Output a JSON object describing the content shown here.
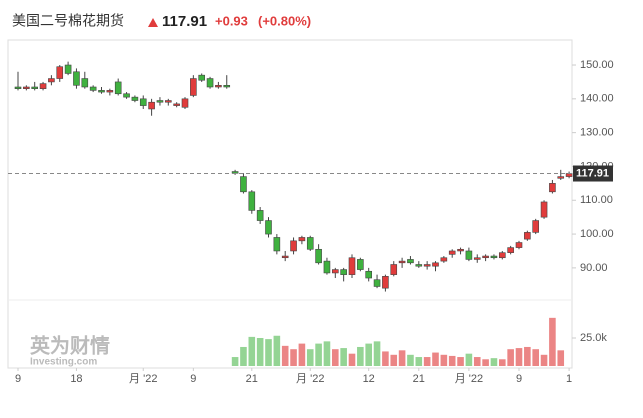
{
  "chart_data": {
    "type": "candlestick",
    "title": "美国二号棉花期货",
    "price_change": "+0.93",
    "price_change_pct": "(+0.80%)",
    "watermark_cn": "英为财情",
    "watermark_en": "Investing.com",
    "categories": [
      "9",
      null,
      null,
      null,
      null,
      null,
      null,
      "18",
      null,
      null,
      null,
      null,
      null,
      null,
      null,
      "月 '22",
      null,
      null,
      null,
      null,
      null,
      "9",
      null,
      null,
      null,
      null,
      null,
      null,
      "21",
      null,
      null,
      null,
      null,
      null,
      null,
      "月 '22",
      null,
      null,
      null,
      null,
      null,
      null,
      "12",
      null,
      null,
      null,
      null,
      null,
      "21",
      null,
      null,
      null,
      null,
      null,
      "月 '22",
      null,
      null,
      null,
      null,
      null,
      "9",
      null,
      null,
      null,
      null,
      null,
      "1"
    ],
    "open": [
      143.5,
      143,
      143.5,
      143,
      145,
      146,
      150,
      148,
      146,
      143.5,
      142.5,
      142,
      145,
      141.5,
      140.5,
      140,
      137,
      139.5,
      139,
      138,
      137.5,
      141,
      147,
      146,
      143.5,
      144,
      118.5,
      117,
      112.5,
      107,
      104,
      99,
      93,
      95,
      98,
      99,
      95.5,
      92,
      88.5,
      89.5,
      88,
      92.5,
      89,
      86.5,
      84,
      88,
      91.5,
      92.5,
      91,
      90.5,
      90.5,
      92,
      94,
      95,
      95,
      92.5,
      93,
      93.5,
      93,
      94.5,
      96,
      98.5,
      100.5,
      105,
      112.5,
      116.5,
      117
    ],
    "high": [
      148,
      144,
      145,
      145,
      147,
      150,
      151,
      149,
      148,
      144,
      143.5,
      143,
      146,
      142,
      141,
      141,
      140,
      140.5,
      140,
      139,
      140.5,
      147,
      147.5,
      146.5,
      145,
      147,
      119,
      118,
      113,
      108,
      105,
      100,
      95,
      99,
      99.5,
      99.5,
      97,
      93,
      90,
      90,
      94,
      93,
      90,
      88,
      88,
      92,
      93,
      93.5,
      92,
      92,
      92,
      93.5,
      95.5,
      96,
      96,
      94,
      94,
      94,
      95,
      96.5,
      98,
      101,
      104.5,
      110,
      116,
      119,
      118.5
    ],
    "low": [
      142.5,
      142.5,
      142.5,
      142.5,
      144,
      145,
      147,
      143,
      143,
      142,
      141.5,
      141,
      141,
      140,
      139,
      137,
      135,
      138,
      138,
      137.5,
      137,
      140.5,
      145,
      143,
      143,
      143,
      117.5,
      112,
      106,
      103,
      99,
      94,
      92,
      94,
      97,
      95,
      91,
      88,
      87,
      86,
      87,
      89,
      86,
      84,
      83,
      87.5,
      90,
      91,
      90,
      89.5,
      89,
      91.5,
      93,
      94,
      92,
      91.5,
      92,
      92.5,
      92.5,
      94,
      95.5,
      98,
      100,
      104.5,
      112,
      116,
      116.5
    ],
    "close": [
      143,
      143.5,
      143,
      144.5,
      146,
      149.5,
      147.5,
      144,
      143.5,
      142.5,
      142,
      142.5,
      141.5,
      140.5,
      139.5,
      138,
      139,
      139,
      139.5,
      138.5,
      140,
      146,
      145.5,
      143.5,
      144,
      143.5,
      118,
      112.5,
      107,
      104,
      100,
      95,
      93.5,
      98,
      99,
      95.5,
      91.5,
      88.5,
      89.5,
      88,
      93,
      89.5,
      87,
      84.5,
      87.5,
      91,
      92,
      91.5,
      90.5,
      91,
      91.5,
      93,
      95,
      95.5,
      92.5,
      93,
      93.5,
      93,
      94.5,
      96,
      97.5,
      100.5,
      104,
      109.5,
      115,
      117,
      117.91
    ],
    "volume": [
      null,
      null,
      null,
      null,
      null,
      null,
      null,
      null,
      null,
      null,
      null,
      null,
      null,
      null,
      null,
      null,
      null,
      null,
      null,
      null,
      null,
      null,
      null,
      null,
      null,
      null,
      8000,
      17000,
      26000,
      25000,
      24000,
      27000,
      18000,
      15000,
      20000,
      15000,
      20000,
      22000,
      15000,
      16000,
      11000,
      17000,
      20000,
      22000,
      13000,
      10000,
      14000,
      10000,
      8000,
      8000,
      12000,
      10000,
      9000,
      8000,
      11000,
      8000,
      6000,
      7000,
      6000,
      15000,
      16000,
      17000,
      15000,
      10000,
      43000,
      14000,
      null
    ],
    "ylim": [
      80.5,
      157.4
    ],
    "yticks": [
      {
        "value": 150,
        "label": "150.00"
      },
      {
        "value": 140,
        "label": "140.00"
      },
      {
        "value": 130,
        "label": "130.00"
      },
      {
        "value": 120,
        "label": "120.00"
      },
      {
        "value": 110,
        "label": "110.00"
      },
      {
        "value": 100,
        "label": "100.00"
      },
      {
        "value": 90,
        "label": "90.00"
      }
    ],
    "y2lim": [
      0,
      50000
    ],
    "y2ticks": [
      {
        "value": 25000,
        "label": "25.0k"
      }
    ],
    "up_color": "#e03c3c",
    "down_color": "#3fb13f",
    "volume_up_color": "#eb8585",
    "volume_down_color": "#94d494",
    "grid": false
  }
}
